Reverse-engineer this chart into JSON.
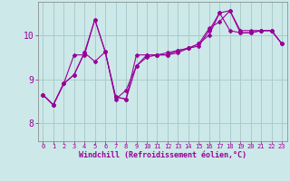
{
  "xlabel": "Windchill (Refroidissement éolien,°C)",
  "background_color": "#cce8e8",
  "grid_color": "#aacccc",
  "line_color": "#990099",
  "x_ticks": [
    0,
    1,
    2,
    3,
    4,
    5,
    6,
    7,
    8,
    9,
    10,
    11,
    12,
    13,
    14,
    15,
    16,
    17,
    18,
    19,
    20,
    21,
    22,
    23
  ],
  "y_ticks": [
    8,
    9,
    10
  ],
  "ylim": [
    7.6,
    10.75
  ],
  "xlim": [
    -0.5,
    23.5
  ],
  "series": [
    [
      8.65,
      8.42,
      8.9,
      9.1,
      9.6,
      9.4,
      9.62,
      8.6,
      8.55,
      9.55,
      9.55,
      9.55,
      9.55,
      9.6,
      9.7,
      9.8,
      10.0,
      10.5,
      10.1,
      10.05,
      10.05,
      10.1,
      10.1,
      9.8
    ],
    [
      8.65,
      8.42,
      8.9,
      9.55,
      9.55,
      10.35,
      9.62,
      8.55,
      8.75,
      9.3,
      9.5,
      9.55,
      9.6,
      9.65,
      9.7,
      9.8,
      10.15,
      10.3,
      10.55,
      10.1,
      10.1,
      10.1,
      10.1,
      9.8
    ],
    [
      8.65,
      8.42,
      8.9,
      9.1,
      9.6,
      10.35,
      9.62,
      8.6,
      8.55,
      9.3,
      9.55,
      9.55,
      9.55,
      9.65,
      9.7,
      9.75,
      10.1,
      10.5,
      10.55,
      10.05,
      10.05,
      10.1,
      10.1,
      9.8
    ]
  ]
}
